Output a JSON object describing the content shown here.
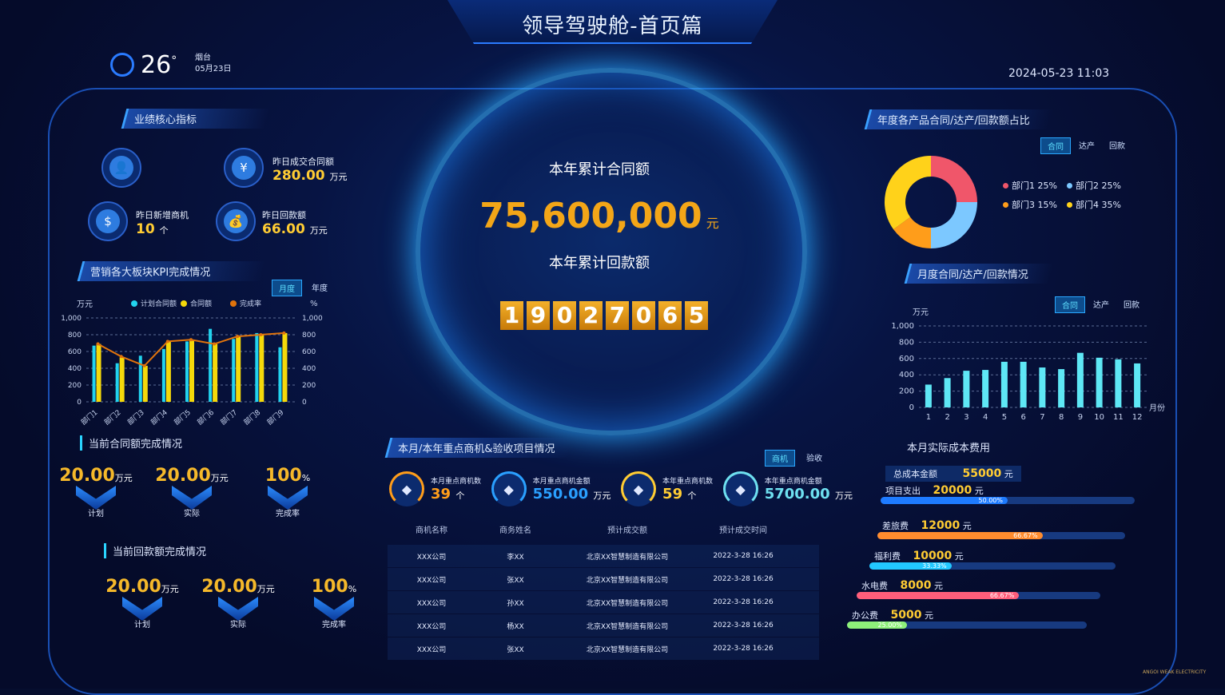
{
  "header": {
    "title": "领导驾驶舱-首页篇",
    "temp": "26",
    "deg": "°",
    "city": "烟台",
    "date": "05月23日",
    "datetime": "2024-05-23 11:03"
  },
  "core": {
    "title": "业绩核心指标",
    "items": [
      {
        "label": "昨日成交合同额",
        "value": "280.00",
        "unit": "万元",
        "icon": "yen-icon"
      },
      {
        "label": "昨日新增商机",
        "value": "10",
        "unit": "个",
        "icon": "shop-icon"
      },
      {
        "label": "昨日回款额",
        "value": "66.00",
        "unit": "万元",
        "icon": "money-bag-icon"
      }
    ]
  },
  "kpi": {
    "title": "营销各大板块KPI完成情况",
    "tabs": [
      "月度",
      "年度"
    ],
    "active_tab": 0
  },
  "chart_data": [
    {
      "type": "bar",
      "title": "",
      "ylabel": "万元",
      "y2label": "%",
      "ylim": [
        0,
        1000
      ],
      "y2lim": [
        0,
        1000
      ],
      "yticks": [
        "0",
        "200",
        "400",
        "600",
        "800",
        "1,000"
      ],
      "categories": [
        "部门1",
        "部门2",
        "部门3",
        "部门4",
        "部门5",
        "部门6",
        "部门7",
        "部门8",
        "部门9"
      ],
      "legend": [
        "计划合同额",
        "合同额",
        "完成率"
      ],
      "series": [
        {
          "name": "计划合同额",
          "type": "bar",
          "color": "#22d3ee",
          "values": [
            670,
            460,
            550,
            630,
            720,
            870,
            750,
            820,
            650
          ]
        },
        {
          "name": "合同额",
          "type": "bar",
          "color": "#f5d90a",
          "values": [
            690,
            530,
            430,
            720,
            730,
            690,
            780,
            810,
            820
          ]
        },
        {
          "name": "完成率",
          "type": "line",
          "color": "#e0730c",
          "values": [
            690,
            540,
            430,
            720,
            740,
            690,
            780,
            800,
            820
          ]
        }
      ]
    },
    {
      "type": "bar",
      "title": "",
      "ylabel": "万元",
      "xlabel": "月份",
      "ylim": [
        0,
        1000
      ],
      "yticks": [
        "0",
        "200",
        "400",
        "600",
        "800",
        "1,000"
      ],
      "categories": [
        "1",
        "2",
        "3",
        "4",
        "5",
        "6",
        "7",
        "8",
        "9",
        "10",
        "11",
        "12"
      ],
      "series": [
        {
          "color": "#5ee7f5",
          "values": [
            280,
            360,
            450,
            460,
            560,
            560,
            490,
            470,
            670,
            610,
            590,
            540
          ]
        }
      ]
    },
    {
      "type": "pie",
      "title": "",
      "legend": [
        "部门1 25%",
        "部门2 25%",
        "部门3 15%",
        "部门4 35%"
      ],
      "values": [
        25,
        25,
        15,
        35
      ],
      "colors": [
        "#f0566a",
        "#7cc8ff",
        "#ff9d1a",
        "#ffd21a"
      ]
    }
  ],
  "ratio": {
    "title": "年度各产品合同/达产/回款额占比",
    "tabs": [
      "合同",
      "达产",
      "回款"
    ]
  },
  "monthly": {
    "title": "月度合同/达产/回款情况",
    "tabs": [
      "合同",
      "达产",
      "回款"
    ]
  },
  "center": {
    "contract_label": "本年累计合同额",
    "contract_value": "75,600,000",
    "contract_unit": "元",
    "payback_label": "本年累计回款额",
    "payback_digits": [
      "1",
      "9",
      "0",
      "2",
      "7",
      "0",
      "6",
      "5"
    ]
  },
  "contract_done": {
    "title": "当前合同额完成情况",
    "items": [
      {
        "value": "20.00",
        "unit": "万元",
        "label": "计划"
      },
      {
        "value": "20.00",
        "unit": "万元",
        "label": "实际"
      },
      {
        "value": "100",
        "unit": "%",
        "label": "完成率"
      }
    ]
  },
  "payback_done": {
    "title": "当前回款额完成情况",
    "items": [
      {
        "value": "20.00",
        "unit": "万元",
        "label": "计划"
      },
      {
        "value": "20.00",
        "unit": "万元",
        "label": "实际"
      },
      {
        "value": "100",
        "unit": "%",
        "label": "完成率"
      }
    ]
  },
  "opps": {
    "title": "本月/本年重点商机&验收项目情况",
    "tabs": [
      "商机",
      "验收"
    ],
    "stats": [
      {
        "label": "本月重点商机数",
        "value": "39",
        "unit": "个",
        "color": "#ff9d1a",
        "icon": "grid-icon"
      },
      {
        "label": "本月重点商机金额",
        "value": "550.00",
        "unit": "万元",
        "color": "#2aa0ff",
        "icon": "dollar-icon"
      },
      {
        "label": "本年重点商机数",
        "value": "59",
        "unit": "个",
        "color": "#ffcc33",
        "icon": "layers-icon"
      },
      {
        "label": "本年重点商机金额",
        "value": "5700.00",
        "unit": "万元",
        "color": "#6ee0f0",
        "icon": "money-bag-icon"
      }
    ],
    "columns": [
      "商机名称",
      "商务姓名",
      "预计成交额",
      "预计成交时间"
    ],
    "rows": [
      [
        "XXX公司",
        "李XX",
        "北京XX智慧制造有限公司",
        "2022-3-28 16:26"
      ],
      [
        "XXX公司",
        "张XX",
        "北京XX智慧制造有限公司",
        "2022-3-28 16:26"
      ],
      [
        "XXX公司",
        "孙XX",
        "北京XX智慧制造有限公司",
        "2022-3-28 16:26"
      ],
      [
        "XXX公司",
        "杨XX",
        "北京XX智慧制造有限公司",
        "2022-3-28 16:26"
      ],
      [
        "XXX公司",
        "张XX",
        "北京XX智慧制造有限公司",
        "2022-3-28 16:26"
      ]
    ]
  },
  "cost": {
    "title": "本月实际成本费用",
    "total_label": "总成本金额",
    "total_value": "55000",
    "unit": "元",
    "items": [
      {
        "label": "项目支出",
        "value": "20000",
        "pct": "50.00%",
        "fill": 50,
        "color": "#1e7bff"
      },
      {
        "label": "差旅费",
        "value": "12000",
        "pct": "66.67%",
        "fill": 66.67,
        "color": "#ff8c2e"
      },
      {
        "label": "福利费",
        "value": "10000",
        "pct": "33.33%",
        "fill": 33.33,
        "color": "#22c8ff"
      },
      {
        "label": "水电费",
        "value": "8000",
        "pct": "66.67%",
        "fill": 66.67,
        "color": "#ff5e7a"
      },
      {
        "label": "办公费",
        "value": "5000",
        "pct": "25.00%",
        "fill": 25,
        "color": "#8ef07a"
      }
    ]
  },
  "logo": {
    "text": "ANGOI WEAK ELECTRICITY"
  }
}
